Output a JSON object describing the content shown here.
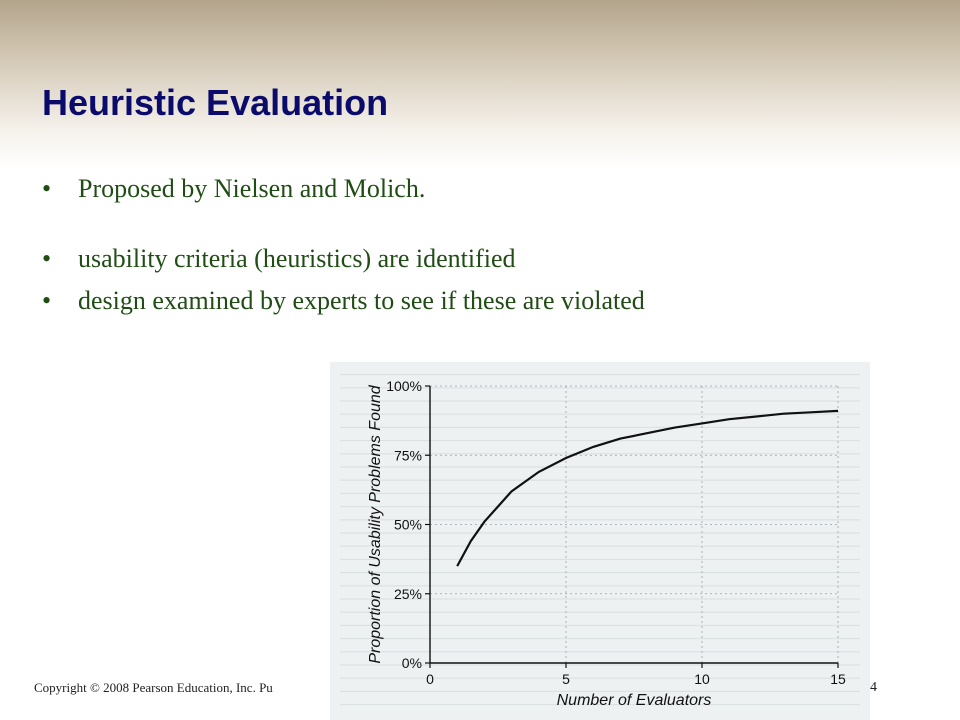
{
  "slide": {
    "title": "Heuristic Evaluation",
    "bullets": [
      "Proposed by Nielsen and Molich.",
      "usability criteria (heuristics) are identified",
      "design examined by experts to see if these are violated"
    ],
    "footer": "Copyright © 2008 Pearson Education, Inc. Pu",
    "page_number": "4"
  },
  "chart_data": {
    "type": "line",
    "xlabel": "Number of Evaluators",
    "ylabel": "Proportion of Usability Problems Found",
    "xlim": [
      0,
      15
    ],
    "ylim": [
      0,
      100
    ],
    "x_ticks": [
      "0",
      "5",
      "10",
      "15"
    ],
    "y_ticks": [
      "0%",
      "25%",
      "50%",
      "75%",
      "100%"
    ],
    "grid": true,
    "series": [
      {
        "x": [
          1,
          1.5,
          2,
          3,
          4,
          5,
          6,
          7,
          8,
          9,
          10,
          11,
          12,
          13,
          14,
          15
        ],
        "y": [
          35,
          44,
          51,
          62,
          69,
          74,
          78,
          81,
          83,
          85,
          86.5,
          88,
          89,
          90,
          90.5,
          91
        ]
      }
    ],
    "colors": {
      "line": "#111111",
      "grid": "#9aa2a6",
      "background": "#eef1f2"
    }
  }
}
